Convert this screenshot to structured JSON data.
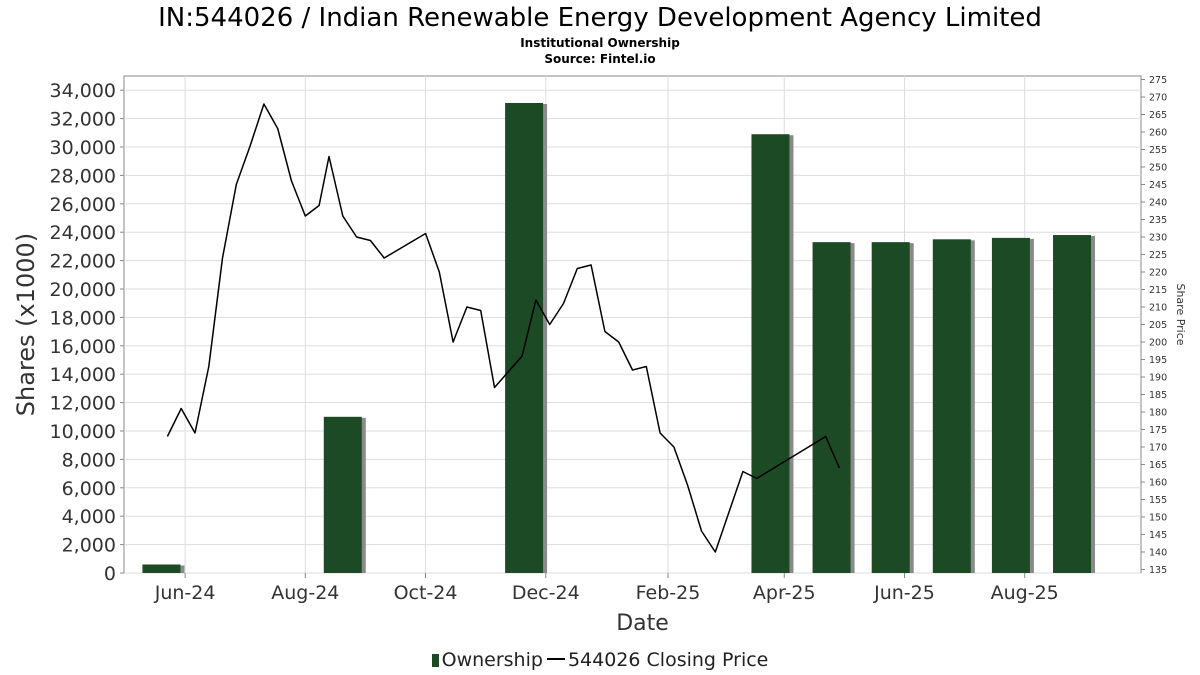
{
  "header": {
    "title": "IN:544026 / Indian Renewable Energy Development Agency Limited",
    "subtitle1": "Institutional Ownership",
    "subtitle2": "Source: Fintel.io"
  },
  "legend": {
    "ownership": "Ownership",
    "price": "544026 Closing Price"
  },
  "colors": {
    "bar": "#1c4a24",
    "bar_shadow": "#8a8a8a",
    "line": "#000000",
    "grid": "#dddddd"
  },
  "chart_data": {
    "type": "bar",
    "xlabel": "Date",
    "ylabel": "Shares (x1000)",
    "y2label": "Share Price",
    "ylim": [
      0,
      35000
    ],
    "y2lim": [
      134,
      276
    ],
    "xlim": [
      "2024-05-01",
      "2025-09-29"
    ],
    "grid": true,
    "legend_position": "bottom",
    "yticks": [
      "0",
      "2,000",
      "4,000",
      "6,000",
      "8,000",
      "10,000",
      "12,000",
      "14,000",
      "16,000",
      "18,000",
      "20,000",
      "22,000",
      "24,000",
      "26,000",
      "28,000",
      "30,000",
      "32,000",
      "34,000"
    ],
    "y2ticks": [
      "135",
      "140",
      "145",
      "150",
      "155",
      "160",
      "165",
      "170",
      "175",
      "180",
      "185",
      "190",
      "195",
      "200",
      "205",
      "210",
      "215",
      "220",
      "225",
      "230",
      "235",
      "240",
      "245",
      "250",
      "255",
      "260",
      "265",
      "270",
      "275"
    ],
    "xticks": [
      {
        "label": "Jun-24",
        "date": "2024-06-01"
      },
      {
        "label": "Aug-24",
        "date": "2024-08-01"
      },
      {
        "label": "Oct-24",
        "date": "2024-10-01"
      },
      {
        "label": "Dec-24",
        "date": "2024-12-01"
      },
      {
        "label": "Feb-25",
        "date": "2025-02-01"
      },
      {
        "label": "Apr-25",
        "date": "2025-04-01"
      },
      {
        "label": "Jun-25",
        "date": "2025-06-01"
      },
      {
        "label": "Aug-25",
        "date": "2025-08-01"
      }
    ],
    "series": [
      {
        "name": "Ownership",
        "axis": "left",
        "type": "bar",
        "points": [
          {
            "date": "2024-05-20",
            "value": 600
          },
          {
            "date": "2024-08-20",
            "value": 11000
          },
          {
            "date": "2024-11-20",
            "value": 33100
          },
          {
            "date": "2025-03-25",
            "value": 30900
          },
          {
            "date": "2025-04-25",
            "value": 23300
          },
          {
            "date": "2025-05-25",
            "value": 23300
          },
          {
            "date": "2025-06-25",
            "value": 23500
          },
          {
            "date": "2025-07-25",
            "value": 23600
          },
          {
            "date": "2025-08-25",
            "value": 23800
          }
        ]
      },
      {
        "name": "544026 Closing Price",
        "axis": "right",
        "type": "line",
        "points": [
          {
            "date": "2024-05-23",
            "value": 173
          },
          {
            "date": "2024-05-30",
            "value": 181
          },
          {
            "date": "2024-06-06",
            "value": 174
          },
          {
            "date": "2024-06-13",
            "value": 193
          },
          {
            "date": "2024-06-20",
            "value": 224
          },
          {
            "date": "2024-06-27",
            "value": 245
          },
          {
            "date": "2024-07-04",
            "value": 256
          },
          {
            "date": "2024-07-11",
            "value": 268
          },
          {
            "date": "2024-07-18",
            "value": 261
          },
          {
            "date": "2024-07-25",
            "value": 246
          },
          {
            "date": "2024-08-01",
            "value": 236
          },
          {
            "date": "2024-08-08",
            "value": 239
          },
          {
            "date": "2024-08-13",
            "value": 253
          },
          {
            "date": "2024-08-20",
            "value": 236
          },
          {
            "date": "2024-08-27",
            "value": 230
          },
          {
            "date": "2024-09-03",
            "value": 229
          },
          {
            "date": "2024-09-10",
            "value": 224
          },
          {
            "date": "2024-10-01",
            "value": 231
          },
          {
            "date": "2024-10-08",
            "value": 220
          },
          {
            "date": "2024-10-15",
            "value": 200
          },
          {
            "date": "2024-10-22",
            "value": 210
          },
          {
            "date": "2024-10-29",
            "value": 209
          },
          {
            "date": "2024-11-05",
            "value": 187
          },
          {
            "date": "2024-11-19",
            "value": 196
          },
          {
            "date": "2024-11-26",
            "value": 212
          },
          {
            "date": "2024-12-03",
            "value": 205
          },
          {
            "date": "2024-12-10",
            "value": 211
          },
          {
            "date": "2024-12-17",
            "value": 221
          },
          {
            "date": "2024-12-24",
            "value": 222
          },
          {
            "date": "2024-12-31",
            "value": 203
          },
          {
            "date": "2025-01-07",
            "value": 200
          },
          {
            "date": "2025-01-14",
            "value": 192
          },
          {
            "date": "2025-01-21",
            "value": 193
          },
          {
            "date": "2025-01-28",
            "value": 174
          },
          {
            "date": "2025-02-04",
            "value": 170
          },
          {
            "date": "2025-02-11",
            "value": 159
          },
          {
            "date": "2025-02-18",
            "value": 146
          },
          {
            "date": "2025-02-25",
            "value": 140
          },
          {
            "date": "2025-03-11",
            "value": 163
          },
          {
            "date": "2025-03-18",
            "value": 161
          },
          {
            "date": "2025-04-22",
            "value": 173
          },
          {
            "date": "2025-04-29",
            "value": 164
          }
        ]
      }
    ]
  }
}
